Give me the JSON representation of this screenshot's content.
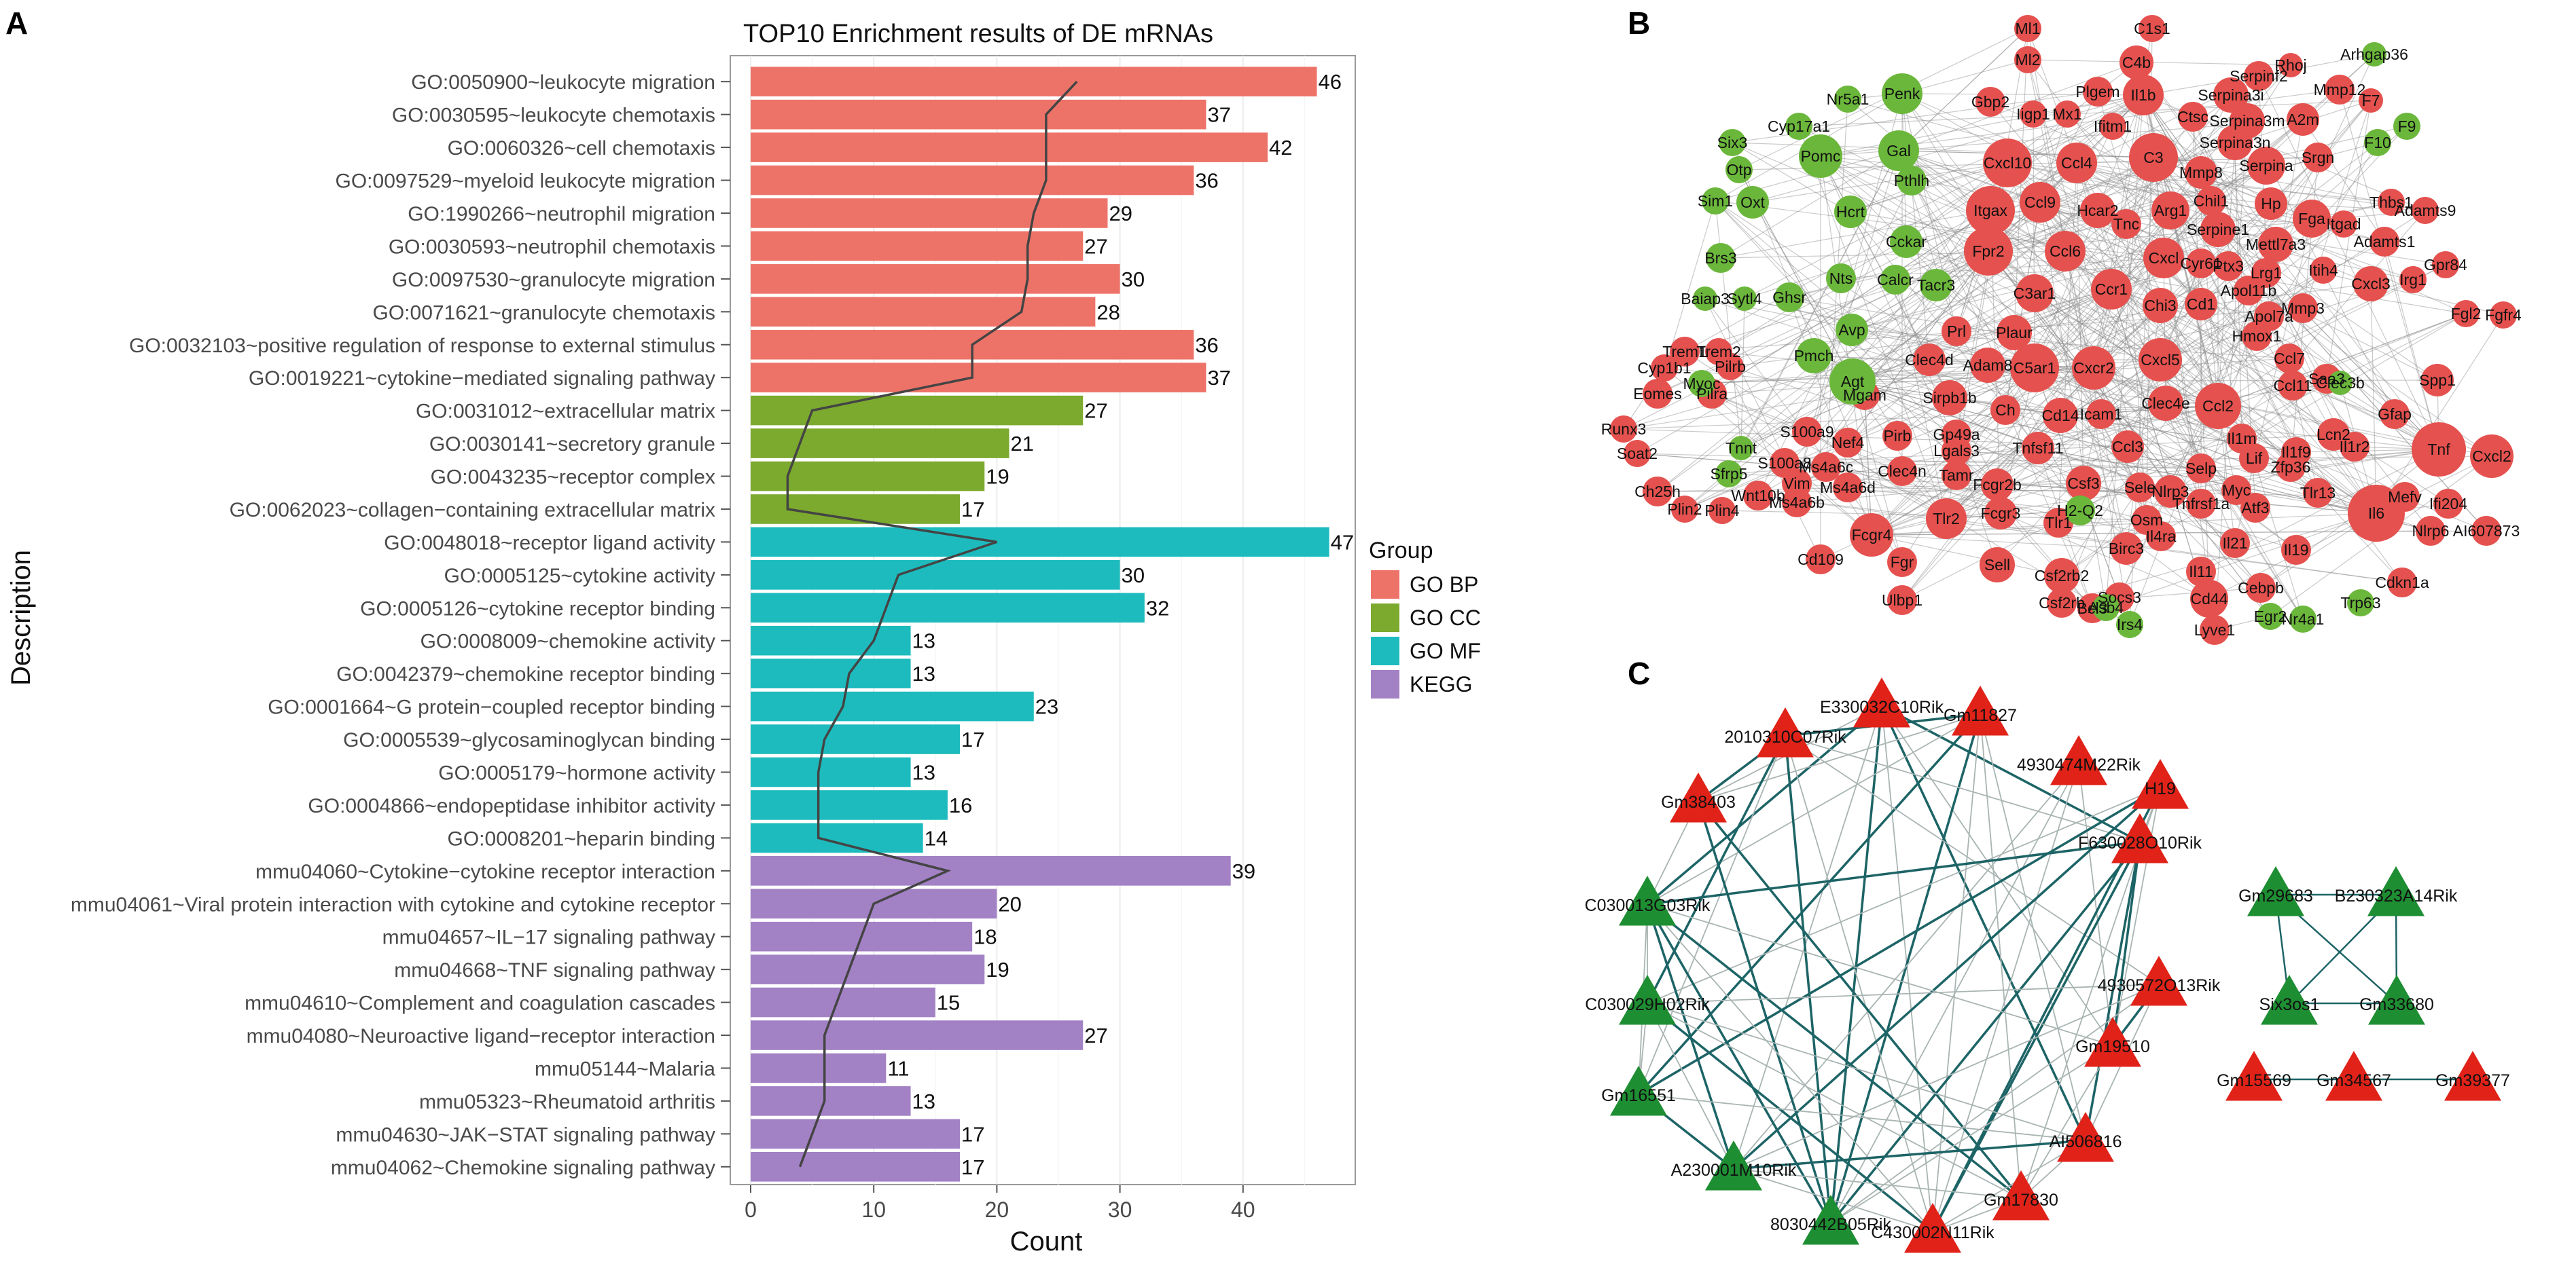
{
  "panels": {
    "a": "A",
    "b": "B",
    "c": "C"
  },
  "chart_data": [
    {
      "type": "bar",
      "title": "TOP10 Enrichment results of DE mRNAs",
      "xlabel": "Count",
      "ylabel": "Description",
      "orientation": "horizontal",
      "xlim": [
        0,
        49
      ],
      "xticks": [
        0,
        10,
        20,
        30,
        40
      ],
      "grid": true,
      "legend": {
        "title": "Group",
        "position": "right",
        "items": [
          {
            "label": "GO BP",
            "color": "#ED7369"
          },
          {
            "label": "GO CC",
            "color": "#7BAA2E"
          },
          {
            "label": "GO MF",
            "color": "#1DBBBE"
          },
          {
            "label": "KEGG",
            "color": "#A281C5"
          }
        ]
      },
      "categories": [
        "GO:0050900~leukocyte migration",
        "GO:0030595~leukocyte chemotaxis",
        "GO:0060326~cell chemotaxis",
        "GO:0097529~myeloid leukocyte migration",
        "GO:1990266~neutrophil migration",
        "GO:0030593~neutrophil chemotaxis",
        "GO:0097530~granulocyte migration",
        "GO:0071621~granulocyte chemotaxis",
        "GO:0032103~positive regulation of response to external stimulus",
        "GO:0019221~cytokine−mediated signaling pathway",
        "GO:0031012~extracellular matrix",
        "GO:0030141~secretory granule",
        "GO:0043235~receptor complex",
        "GO:0062023~collagen−containing extracellular matrix",
        "GO:0048018~receptor ligand activity",
        "GO:0005125~cytokine activity",
        "GO:0005126~cytokine receptor binding",
        "GO:0008009~chemokine activity",
        "GO:0042379~chemokine receptor binding",
        "GO:0001664~G protein−coupled receptor binding",
        "GO:0005539~glycosaminoglycan binding",
        "GO:0005179~hormone activity",
        "GO:0004866~endopeptidase inhibitor activity",
        "GO:0008201~heparin binding",
        "mmu04060~Cytokine−cytokine receptor interaction",
        "mmu04061~Viral protein interaction with cytokine and cytokine receptor",
        "mmu04657~IL−17 signaling pathway",
        "mmu04668~TNF signaling pathway",
        "mmu04610~Complement and coagulation cascades",
        "mmu04080~Neuroactive ligand−receptor interaction",
        "mmu05144~Malaria",
        "mmu05323~Rheumatoid arthritis",
        "mmu04630~JAK−STAT signaling pathway",
        "mmu04062~Chemokine signaling pathway"
      ],
      "values": [
        46,
        37,
        42,
        36,
        29,
        27,
        30,
        28,
        36,
        37,
        27,
        21,
        19,
        17,
        47,
        30,
        32,
        13,
        13,
        23,
        17,
        13,
        16,
        14,
        39,
        20,
        18,
        19,
        15,
        27,
        11,
        13,
        17,
        17
      ],
      "groups": [
        "GO BP",
        "GO BP",
        "GO BP",
        "GO BP",
        "GO BP",
        "GO BP",
        "GO BP",
        "GO BP",
        "GO BP",
        "GO BP",
        "GO CC",
        "GO CC",
        "GO CC",
        "GO CC",
        "GO MF",
        "GO MF",
        "GO MF",
        "GO MF",
        "GO MF",
        "GO MF",
        "GO MF",
        "GO MF",
        "GO MF",
        "GO MF",
        "KEGG",
        "KEGG",
        "KEGG",
        "KEGG",
        "KEGG",
        "KEGG",
        "KEGG",
        "KEGG",
        "KEGG",
        "KEGG"
      ],
      "trend_line": [
        26.5,
        24,
        24,
        24,
        23,
        22.5,
        22.5,
        22,
        18,
        18,
        5,
        4,
        3,
        3,
        20,
        12,
        11,
        10,
        8,
        7.5,
        6,
        5.5,
        5.5,
        5.5,
        16,
        10,
        9,
        8,
        7,
        6,
        6,
        6,
        5,
        4
      ]
    },
    {
      "type": "network",
      "title": "",
      "node_colors": {
        "red": "#E5514E",
        "green": "#6BB73B"
      },
      "red_nodes": [
        "Ml1",
        "C1s1",
        "Ml2",
        "C4b",
        "Rhoj",
        "Serpinf2",
        "Plgem",
        "Gbp2",
        "Iigp1",
        "Mx1",
        "Ifitm1",
        "Il1b",
        "Ctsc",
        "Serpina3i",
        "Mmp12",
        "F7",
        "Serpina3m",
        "A2m",
        "Serpina3n",
        "C3",
        "Cxcl10",
        "Ccl4",
        "Mmp8",
        "Serpina",
        "Srgn",
        "Itgax",
        "Ccl9",
        "Hcar2",
        "Arg1",
        "Chil1",
        "Hp",
        "Fga",
        "Itgad",
        "Thbs1",
        "Adamts9",
        "Tnc",
        "Serpine1",
        "Mettl7a3",
        "Adamts1",
        "Gpr84",
        "Fpr2",
        "Ccl6",
        "Cxcl",
        "Cyr61",
        "Ptx3",
        "Lrg1",
        "Itih4",
        "Irg1",
        "C3ar1",
        "Ccr1",
        "Chi3",
        "Cd1",
        "Apol11b",
        "Mmp3",
        "Cxcl3",
        "Fgl2",
        "Fgfr4",
        "Plaur",
        "Apol7a",
        "Hmox1",
        "Prl",
        "C5ar1",
        "Cxcr2",
        "Cxcl5",
        "Trem1",
        "Trem2",
        "Cyp1b1",
        "Pilrb",
        "Clec4d",
        "Adam8",
        "Ccl7",
        "Ccl2",
        "Ccl11",
        "Saa3",
        "Eomes",
        "Pilra",
        "Mgam",
        "Sirpb1b",
        "Ch",
        "Cd14",
        "Icam1",
        "Clec4e",
        "Il1m",
        "Lcn2",
        "Gfap",
        "Spp1",
        "Runx3",
        "S100a9",
        "Nef4",
        "Pirb",
        "Gp49a",
        "Lgals3",
        "Tnfsf11",
        "Ccl3",
        "Selp",
        "Lif",
        "Il1f9",
        "Il1r2",
        "Tnf",
        "Cxcl2",
        "Soat2",
        "S100a8",
        "Ms4a6c",
        "Tamr",
        "Fcgr2b",
        "Csf3",
        "Sele",
        "Nlrp3",
        "Zfp36",
        "Tlr13",
        "Ch25h",
        "Plin2",
        "Plin4",
        "Vim",
        "Ms4a6d",
        "Clec4n",
        "Tlr2",
        "Fcgr3",
        "Tlr1",
        "Osm",
        "Myc",
        "Tnfrsf1a",
        "Atf3",
        "Mefv",
        "Ifi204",
        "Ms4a6b",
        "Wnt10b",
        "Fcgr4",
        "Il4ra",
        "Birc3",
        "Il21",
        "Il19",
        "Nlrp6",
        "AI607873",
        "Cd109",
        "Fgr",
        "Sell",
        "Csf2rb2",
        "Il11",
        "Il6",
        "Ulbp1",
        "Csf2rb",
        "Socs3",
        "Bcl3",
        "Cebpb",
        "Cdkn1a",
        "Cd44",
        "Lyve1"
      ],
      "green_nodes": [
        "Arhgap36",
        "Nr5a1",
        "Penk",
        "Cyp17a1",
        "Six3",
        "Pomc",
        "Gal",
        "F9",
        "Otp",
        "F10",
        "Pthlh",
        "Sim1",
        "Oxt",
        "Hcrt",
        "Cckar",
        "Brs3",
        "Nts",
        "Tacr3",
        "Calcr",
        "Baiap3",
        "Sytl4",
        "Ghsr",
        "Avp",
        "Pmch",
        "Agt",
        "Myoc",
        "Clec3b",
        "Tnnt",
        "Sfrp5",
        "H2-Q2",
        "Asb4",
        "Irs4",
        "Egr2",
        "Nr4a1",
        "Trp63"
      ]
    },
    {
      "type": "network",
      "title": "",
      "node_colors": {
        "red": "#E02218",
        "green": "#1E8E32"
      },
      "edge_colors": {
        "strong": "#1D6466",
        "weak": "#A9B5B3"
      },
      "red_nodes": [
        "E330032C10Rik",
        "Gm11827",
        "2010310C07Rik",
        "4930474M22Rik",
        "H19",
        "Gm38403",
        "F630028O10Rik",
        "4930572O13Rik",
        "Gm19510",
        "AI506816",
        "Gm17830",
        "C430002N11Rik",
        "Gm15569",
        "Gm34567",
        "Gm39377"
      ],
      "green_nodes": [
        "C030013G03Rik",
        "C030029H02Rik",
        "Gm16551",
        "A230001M10Rik",
        "8030442B05Rik",
        "Gm29683",
        "B230323A14Rik",
        "Six3os1",
        "Gm33680"
      ]
    }
  ]
}
